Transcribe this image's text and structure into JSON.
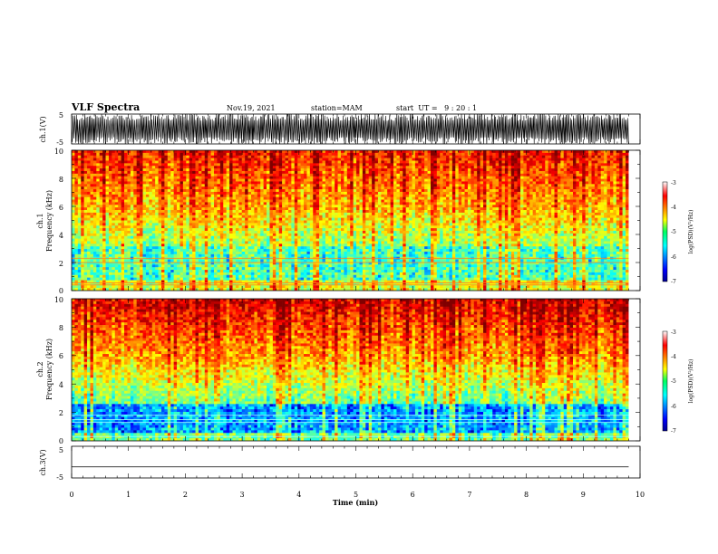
{
  "header": {
    "title": "VLF Spectra",
    "date": "Nov.19, 2021",
    "station": "station=MAM",
    "start": "start  UT =   9 : 20 : 1"
  },
  "chart_data": [
    {
      "type": "line",
      "name": "waveform-ch1",
      "ylabel": "ch.1(V)",
      "ylim": [
        -5,
        5
      ],
      "yticks": [
        "5",
        "-5"
      ],
      "xlim": [
        0,
        10
      ],
      "description": "dense oscillating waveform saturating near ±5 V"
    },
    {
      "type": "heatmap",
      "name": "spectrogram-ch1",
      "ylabel": "ch.1\nFrequency (kHz)",
      "ylim": [
        0,
        10
      ],
      "yticks": [
        "0",
        "2",
        "4",
        "6",
        "8",
        "10"
      ],
      "xlim": [
        0,
        9.8
      ],
      "colorbar": {
        "label": "log(PSD)(V²/Hz)",
        "ticks": [
          "-3",
          "-4",
          "-5",
          "-6",
          "-7"
        ],
        "range": [
          -7,
          -3
        ]
      }
    },
    {
      "type": "heatmap",
      "name": "spectrogram-ch2",
      "ylabel": "ch.2\nFrequency (kHz)",
      "ylim": [
        0,
        10
      ],
      "yticks": [
        "0",
        "2",
        "4",
        "6",
        "8",
        "10"
      ],
      "xlim": [
        0,
        9.8
      ],
      "colorbar": {
        "label": "log(PSD)(V²/Hz)",
        "ticks": [
          "-3",
          "-4",
          "-5",
          "-6",
          "-7"
        ],
        "range": [
          -7,
          -3
        ]
      }
    },
    {
      "type": "line",
      "name": "waveform-ch3",
      "ylabel": "ch.3(V)",
      "ylim": [
        -5,
        5
      ],
      "yticks": [
        "5",
        "-5"
      ],
      "x": [
        0,
        9.8
      ],
      "y": [
        -1.5,
        -1.5
      ],
      "xlabel": "Time (min)",
      "xticks": [
        "0",
        "1",
        "2",
        "3",
        "4",
        "5",
        "6",
        "7",
        "8",
        "9",
        "10"
      ]
    }
  ],
  "colors": {
    "jet": [
      "#00008f",
      "#0000ff",
      "#0080ff",
      "#00ffff",
      "#80ff80",
      "#ffff00",
      "#ff8000",
      "#ff0000",
      "#800000"
    ]
  }
}
